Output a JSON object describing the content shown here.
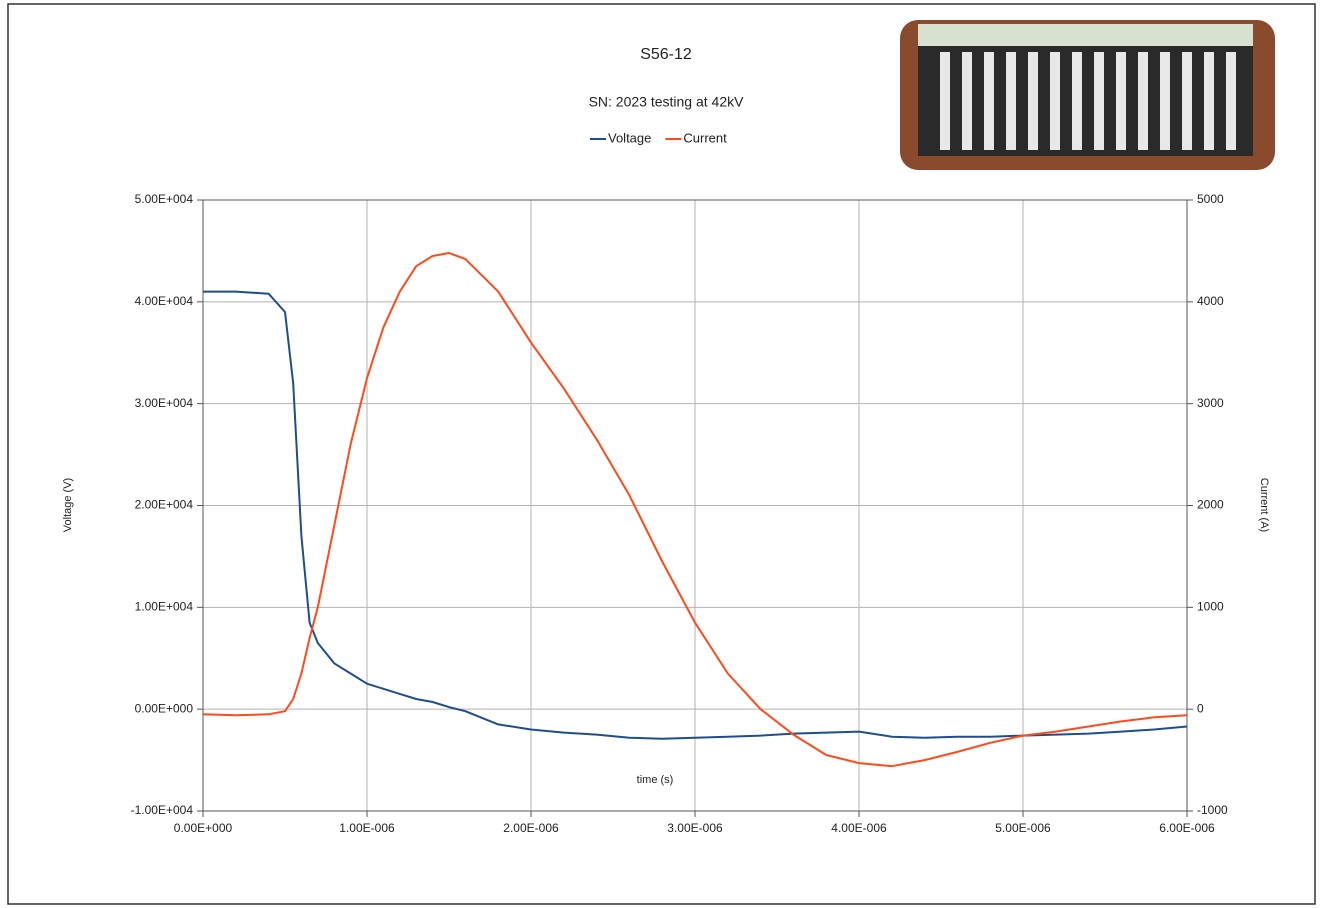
{
  "chart_data": {
    "type": "line",
    "title": "S56-12",
    "subtitle": "SN: 2023 testing at 42kV",
    "x_label": "time (s)",
    "y_label": "Voltage (V)",
    "y2_label": "Current (A)",
    "x": [
      0,
      2e-07,
      4e-07,
      5e-07,
      5.5e-07,
      6e-07,
      6.5e-07,
      7e-07,
      8e-07,
      9e-07,
      1e-06,
      1.1e-06,
      1.2e-06,
      1.3e-06,
      1.4e-06,
      1.5e-06,
      1.6e-06,
      1.8e-06,
      2e-06,
      2.2e-06,
      2.4e-06,
      2.6e-06,
      2.8e-06,
      3e-06,
      3.2e-06,
      3.4e-06,
      3.6e-06,
      3.8e-06,
      4e-06,
      4.2e-06,
      4.4e-06,
      4.6e-06,
      4.8e-06,
      5e-06,
      5.2e-06,
      5.4e-06,
      5.6e-06,
      5.8e-06,
      6e-06
    ],
    "series": [
      {
        "name": "Voltage",
        "color": "#1f4e8c",
        "axis": "y",
        "values": [
          41000,
          41000,
          40800,
          39000,
          32000,
          17000,
          8500,
          6500,
          4500,
          3500,
          2500,
          2000,
          1500,
          1000,
          700,
          200,
          -200,
          -1500,
          -2000,
          -2300,
          -2500,
          -2800,
          -2900,
          -2800,
          -2700,
          -2600,
          -2400,
          -2300,
          -2200,
          -2700,
          -2800,
          -2700,
          -2700,
          -2600,
          -2500,
          -2400,
          -2200,
          -2000,
          -1700
        ]
      },
      {
        "name": "Current",
        "color": "#ff4a1c",
        "axis": "y2",
        "values": [
          -50,
          -60,
          -50,
          -20,
          100,
          350,
          700,
          1000,
          1800,
          2600,
          3250,
          3750,
          4100,
          4350,
          4450,
          4480,
          4420,
          4100,
          3600,
          3150,
          2650,
          2100,
          1450,
          850,
          350,
          0,
          -250,
          -450,
          -530,
          -560,
          -500,
          -420,
          -330,
          -260,
          -220,
          -170,
          -120,
          -80,
          -60
        ]
      }
    ],
    "xlim": [
      0,
      6e-06
    ],
    "xticks": [
      {
        "value": 0,
        "label": "0.00E+000"
      },
      {
        "value": 1e-06,
        "label": "1.00E-006"
      },
      {
        "value": 2e-06,
        "label": "2.00E-006"
      },
      {
        "value": 3e-06,
        "label": "3.00E-006"
      },
      {
        "value": 4e-06,
        "label": "4.00E-006"
      },
      {
        "value": 5e-06,
        "label": "5.00E-006"
      },
      {
        "value": 6e-06,
        "label": "6.00E-006"
      }
    ],
    "ylim": [
      -10000,
      50000
    ],
    "yticks": [
      {
        "value": -10000,
        "label": "-1.00E+004"
      },
      {
        "value": 0,
        "label": "0.00E+000"
      },
      {
        "value": 10000,
        "label": "1.00E+004"
      },
      {
        "value": 20000,
        "label": "2.00E+004"
      },
      {
        "value": 30000,
        "label": "3.00E+004"
      },
      {
        "value": 40000,
        "label": "4.00E+004"
      },
      {
        "value": 50000,
        "label": "5.00E+004"
      }
    ],
    "y2lim": [
      -1000,
      5000
    ],
    "y2ticks": [
      -1000,
      0,
      1000,
      2000,
      3000,
      4000,
      5000
    ],
    "grid": true,
    "legend": "top"
  }
}
